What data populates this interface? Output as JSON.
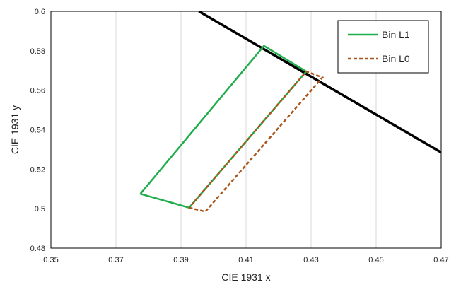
{
  "chart_data": {
    "type": "line",
    "title": "",
    "xlabel": "CIE 1931 x",
    "ylabel": "CIE 1931 y",
    "xlim": [
      0.35,
      0.47
    ],
    "ylim": [
      0.48,
      0.6
    ],
    "xticks": [
      "0.35",
      "0.37",
      "0.39",
      "0.41",
      "0.43",
      "0.45",
      "0.47"
    ],
    "yticks": [
      "0.48",
      "0.5",
      "0.52",
      "0.54",
      "0.56",
      "0.58",
      "0.6"
    ],
    "grid": "vertical",
    "legend": "top-right",
    "series": [
      {
        "name": "Bin L1",
        "color": "#1fae4b",
        "style": "solid",
        "points": [
          [
            0.3775,
            0.5075
          ],
          [
            0.3925,
            0.5005
          ],
          [
            0.4285,
            0.5695
          ],
          [
            0.4155,
            0.5825
          ],
          [
            0.3775,
            0.5075
          ]
        ]
      },
      {
        "name": "Bin L0",
        "color": "#a9541a",
        "style": "dashed",
        "points": [
          [
            0.3925,
            0.5005
          ],
          [
            0.3975,
            0.4985
          ],
          [
            0.4335,
            0.5665
          ],
          [
            0.4285,
            0.5695
          ],
          [
            0.3925,
            0.5005
          ]
        ]
      },
      {
        "name": "",
        "color": "#000000",
        "style": "solid",
        "points": [
          [
            0.3955,
            0.6
          ],
          [
            0.47,
            0.5285
          ]
        ]
      }
    ]
  }
}
